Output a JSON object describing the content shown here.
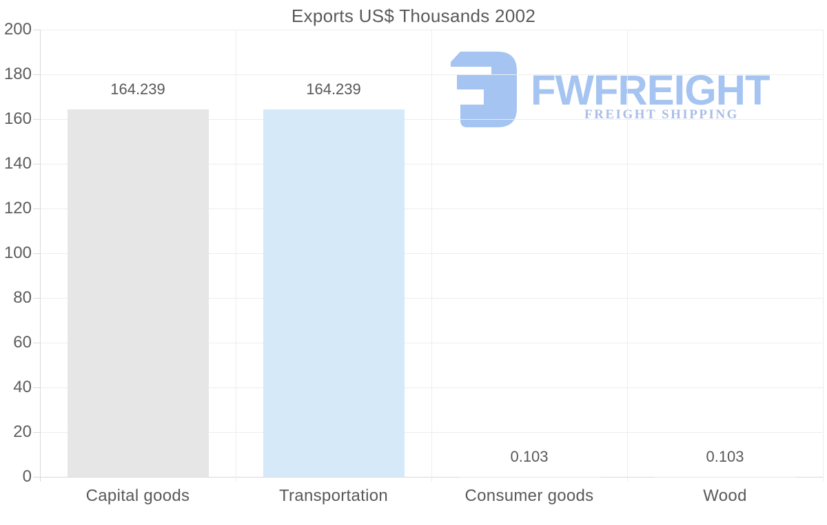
{
  "chart_data": {
    "type": "bar",
    "title": "Exports US$ Thousands 2002",
    "categories": [
      "Capital goods",
      "Transportation",
      "Consumer goods",
      "Wood"
    ],
    "values": [
      164.239,
      164.239,
      0.103,
      0.103
    ],
    "value_labels": [
      "164.239",
      "164.239",
      "0.103",
      "0.103"
    ],
    "bar_colors": [
      "#e6e6e6",
      "#d6e9f8",
      "#e6e6e6",
      "#d6e9f8"
    ],
    "xlabel": "",
    "ylabel": "",
    "ylim": [
      0,
      200
    ],
    "ytick_interval": 20,
    "ytick_labels": [
      "200",
      "180",
      "160",
      "140",
      "120",
      "100",
      "80",
      "60",
      "40",
      "20",
      "0"
    ],
    "grid": "on",
    "legend": "none"
  },
  "watermark": {
    "brand": "FWFREIGHT",
    "tagline": "FREIGHT SHIPPING",
    "brand_color": "#a5c4f1",
    "tagline_color": "#a9bde7",
    "logo_icon": "fwfreight-mark"
  },
  "colors": {
    "background": "#ffffff",
    "gridline": "#ededed",
    "axis_line": "#d9d9d9",
    "title_text": "#59595b",
    "tick_text": "#5c5c5e",
    "value_text": "#565759",
    "category_text": "#58595b",
    "bar_gray": "#e6e6e6",
    "bar_blue": "#d6e9f8"
  }
}
